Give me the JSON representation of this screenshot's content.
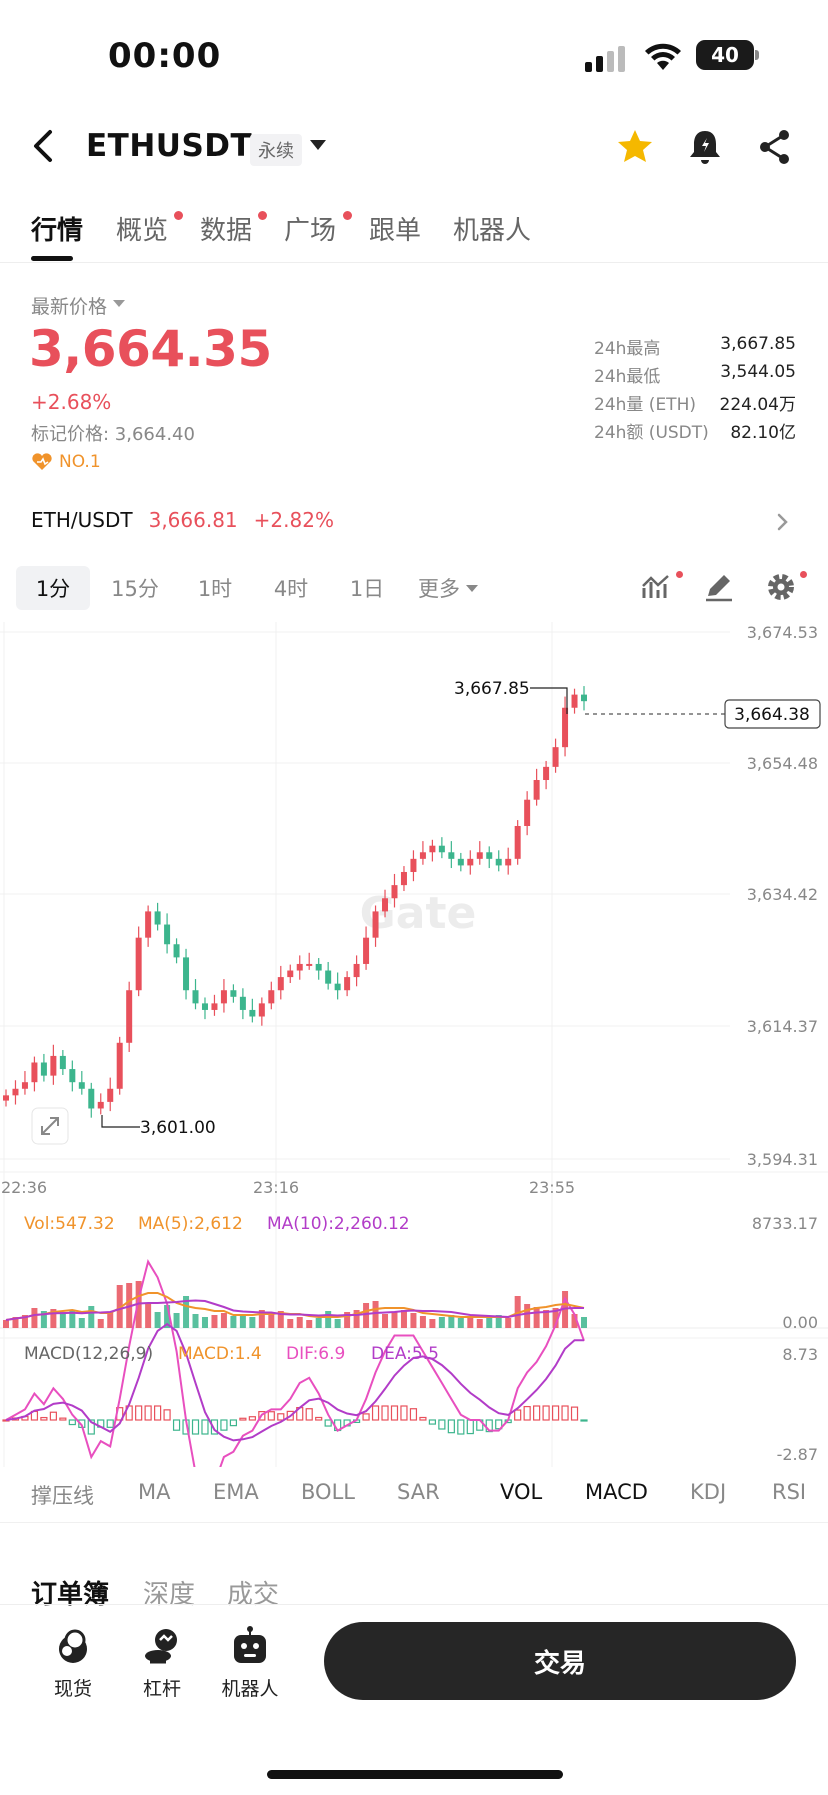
{
  "status_bar": {
    "time": "00:00",
    "battery": "40"
  },
  "header": {
    "symbol": "ETHUSDT",
    "contract_type": "永续"
  },
  "tabs": [
    {
      "label": "行情",
      "active": true,
      "dot": false
    },
    {
      "label": "概览",
      "active": false,
      "dot": true
    },
    {
      "label": "数据",
      "active": false,
      "dot": true
    },
    {
      "label": "广场",
      "active": false,
      "dot": true
    },
    {
      "label": "跟单",
      "active": false,
      "dot": false
    },
    {
      "label": "机器人",
      "active": false,
      "dot": false
    }
  ],
  "price_block": {
    "latest_label": "最新价格",
    "price": "3,664.35",
    "change_pct": "+2.68%",
    "mark_price": "标记价格: 3,664.40",
    "rank": "NO.1"
  },
  "stats": [
    {
      "label": "24h最高",
      "value": "3,667.85"
    },
    {
      "label": "24h最低",
      "value": "3,544.05"
    },
    {
      "label": "24h量 (ETH)",
      "value": "224.04万"
    },
    {
      "label": "24h额 (USDT)",
      "value": "82.10亿"
    }
  ],
  "spot_pair": {
    "name": "ETH/USDT",
    "price": "3,666.81",
    "change": "+2.82%"
  },
  "intervals": [
    {
      "label": "1分",
      "active": true
    },
    {
      "label": "15分",
      "active": false
    },
    {
      "label": "1时",
      "active": false
    },
    {
      "label": "4时",
      "active": false
    },
    {
      "label": "1日",
      "active": false
    },
    {
      "label": "更多",
      "active": false
    }
  ],
  "chart_data": {
    "type": "candlestick",
    "y_ticks": [
      "3,674.53",
      "3,654.48",
      "3,634.42",
      "3,614.37",
      "3,594.31"
    ],
    "ylim": [
      3594.31,
      3674.53
    ],
    "x_ticks": [
      "22:36",
      "23:16",
      "23:55"
    ],
    "high_label": "3,667.85",
    "low_label": "3,601.00",
    "current_price_label": "3,664.38",
    "watermark": "Gate",
    "volume": {
      "vol": "Vol:547.32",
      "ma5": "MA(5):2,612",
      "ma10": "MA(10):2,260.12",
      "max_label": "8733.17",
      "min_label": "0.00"
    },
    "macd": {
      "title": "MACD(12,26,9)",
      "macd": "MACD:1.4",
      "dif": "DIF:6.9",
      "dea": "DEA:5.5",
      "max_label": "8.73",
      "min_label": "-2.87"
    },
    "close_path": [
      3604,
      3605,
      3606,
      3609,
      3607,
      3610,
      3608,
      3606,
      3605,
      3602,
      3603,
      3605,
      3612,
      3620,
      3628,
      3632,
      3630,
      3627,
      3625,
      3620,
      3618,
      3617,
      3618,
      3620,
      3619,
      3617,
      3616,
      3618,
      3620,
      3622,
      3623,
      3624,
      3624,
      3623,
      3621,
      3620,
      3622,
      3624,
      3628,
      3632,
      3634,
      3636,
      3638,
      3640,
      3641,
      3642,
      3641,
      3640,
      3639,
      3640,
      3641,
      3640,
      3639,
      3640,
      3645,
      3649,
      3652,
      3654,
      3657,
      3663,
      3665,
      3664
    ]
  },
  "indicators": [
    {
      "label": "撑压线",
      "on": false
    },
    {
      "label": "MA",
      "on": false
    },
    {
      "label": "EMA",
      "on": false
    },
    {
      "label": "BOLL",
      "on": false
    },
    {
      "label": "SAR",
      "on": false
    },
    {
      "label": "VOL",
      "on": true
    },
    {
      "label": "MACD",
      "on": true
    },
    {
      "label": "KDJ",
      "on": false
    },
    {
      "label": "RSI",
      "on": false
    }
  ],
  "orderbook_tabs": [
    {
      "label": "订单簿",
      "active": true
    },
    {
      "label": "深度",
      "active": false
    },
    {
      "label": "成交",
      "active": false
    }
  ],
  "bottom_nav": [
    {
      "label": "现货",
      "icon": "spot-icon"
    },
    {
      "label": "杠杆",
      "icon": "margin-icon"
    },
    {
      "label": "机器人",
      "icon": "robot-icon"
    }
  ],
  "trade_button": "交易",
  "colors": {
    "up": "#e8505b",
    "down": "#3cb58d",
    "ma5": "#f0932b",
    "ma10": "#b23cc8",
    "accent": "#f5b800"
  }
}
